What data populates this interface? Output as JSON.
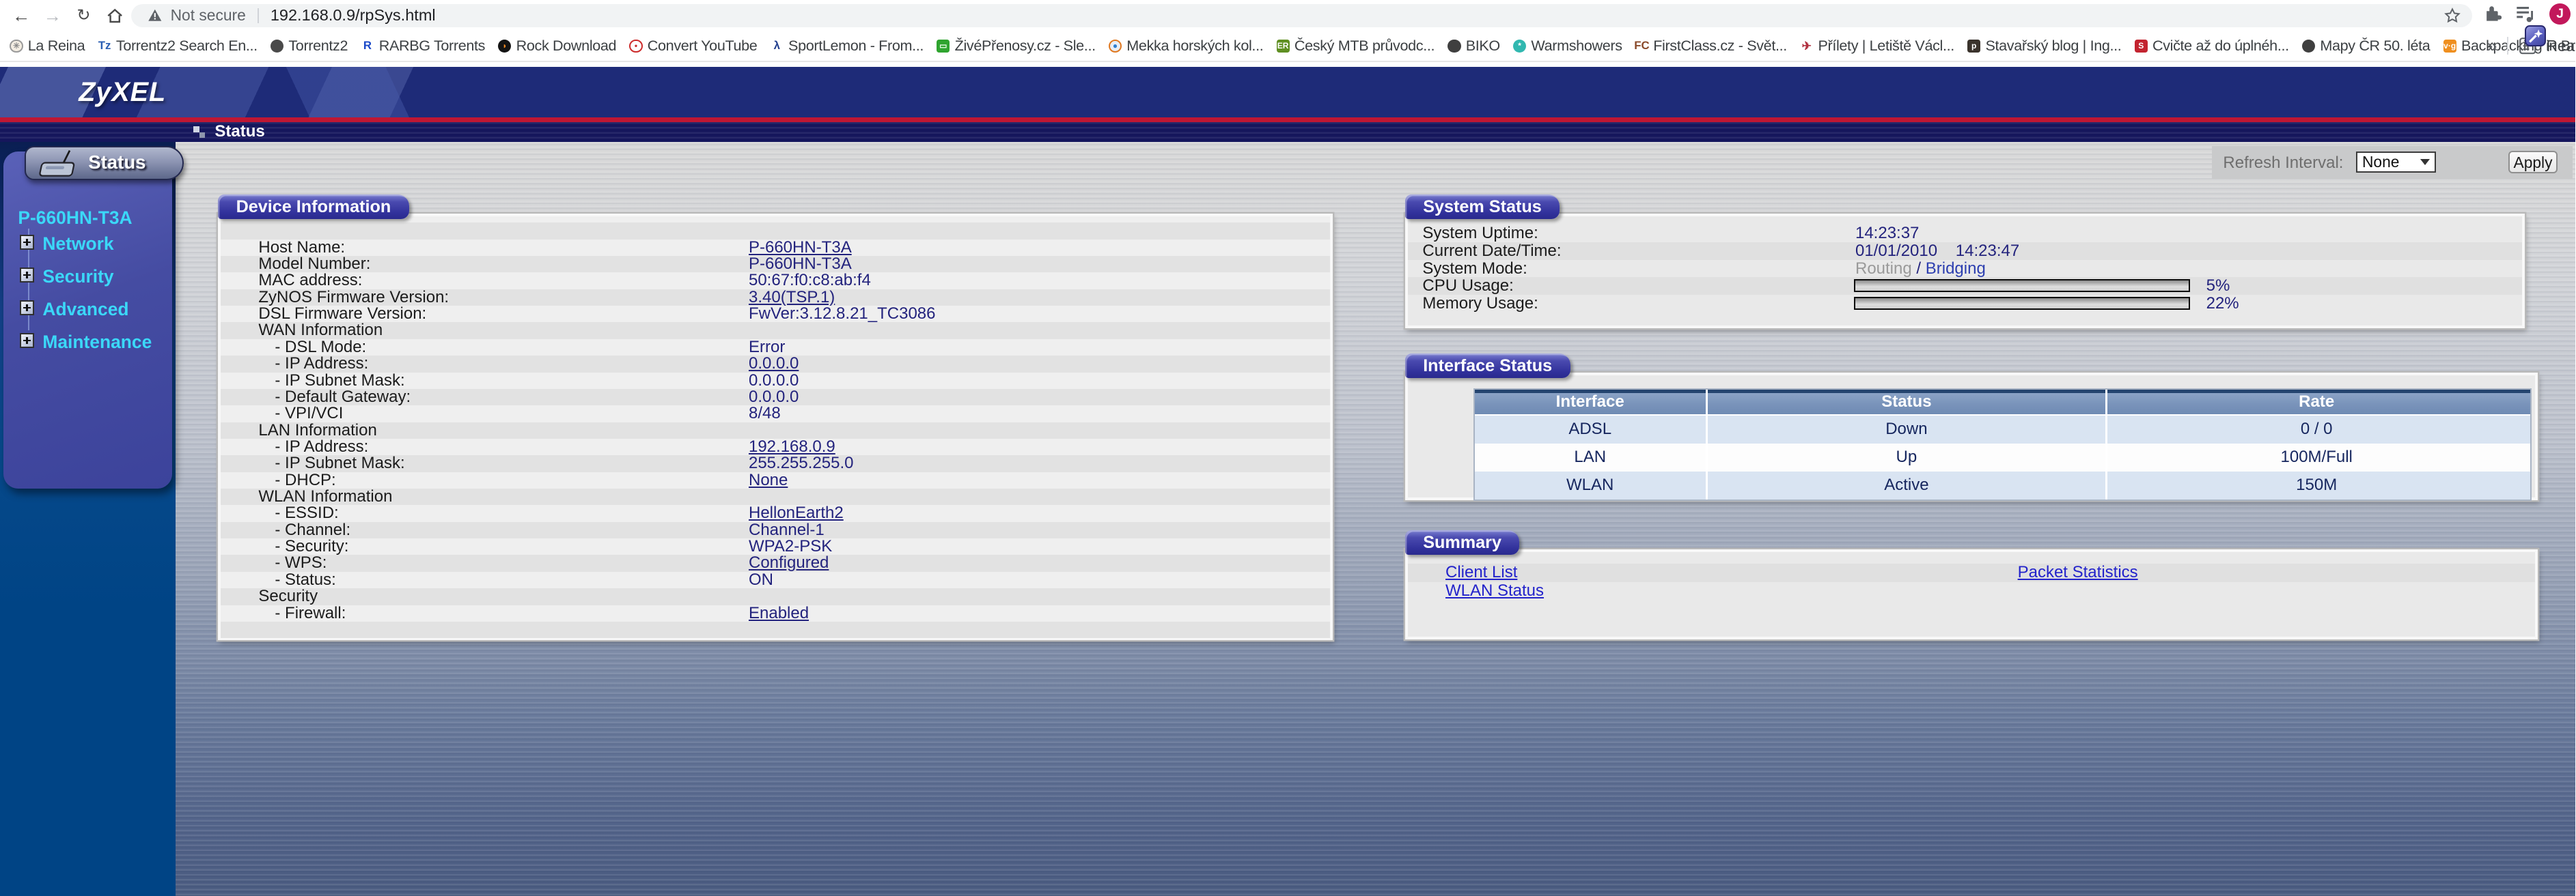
{
  "palette": {
    "red": "#bf1733",
    "cyan": "#3bd8f8",
    "link": "#2323cb",
    "navyval": "#23237d",
    "avatar": "#c2185b"
  },
  "browser": {
    "security_label": "Not secure",
    "url": "192.168.0.9/rpSys.html",
    "profile_initial": "J",
    "overflow_chevron": "»",
    "reading_list_label": "Reading list",
    "bookmarks": [
      {
        "label": "La Reina",
        "icon": {
          "shape": "circle",
          "bg": "#f3ede2",
          "fg": "#8a8a8a",
          "ch": "✳",
          "border": "#9a9a9a"
        }
      },
      {
        "label": "Torrentz2 Search En...",
        "icon": {
          "shape": "text",
          "bg": "",
          "fg": "#2b5fb3",
          "ch": "Tz",
          "border": ""
        }
      },
      {
        "label": "Torrentz2",
        "icon": {
          "shape": "circle",
          "bg": "#4a4a4a",
          "fg": "#e8e8e8",
          "ch": "",
          "border": ""
        }
      },
      {
        "label": "RARBG Torrents",
        "icon": {
          "shape": "text",
          "bg": "",
          "fg": "#1a49c8",
          "ch": "R",
          "border": ""
        }
      },
      {
        "label": "Rock Download",
        "icon": {
          "shape": "circle",
          "bg": "#141414",
          "fg": "#f08a22",
          "ch": "◗",
          "border": ""
        }
      },
      {
        "label": "Convert YouTube",
        "icon": {
          "shape": "circle",
          "bg": "#ffffff",
          "fg": "#cc2b2b",
          "ch": "•",
          "border": "#cc2b2b"
        }
      },
      {
        "label": "SportLemon - From...",
        "icon": {
          "shape": "text",
          "bg": "",
          "fg": "#23408f",
          "ch": "λ",
          "border": ""
        }
      },
      {
        "label": "ŽivéPřenosy.cz - Sle...",
        "icon": {
          "shape": "square",
          "bg": "#2fa42f",
          "fg": "#eaffea",
          "ch": "▭",
          "border": ""
        }
      },
      {
        "label": "Mekka horských kol...",
        "icon": {
          "shape": "circle",
          "bg": "#e8eef6",
          "fg": "#2f7fd0",
          "ch": "●",
          "border": "#e07820"
        }
      },
      {
        "label": "Český MTB průvodc...",
        "icon": {
          "shape": "square",
          "bg": "#5f8f22",
          "fg": "#ffffff",
          "ch": "ER",
          "border": ""
        }
      },
      {
        "label": "BIKO",
        "icon": {
          "shape": "circle",
          "bg": "#3f3f3f",
          "fg": "#ffffff",
          "ch": "",
          "border": ""
        }
      },
      {
        "label": "Warmshowers",
        "icon": {
          "shape": "circle",
          "bg": "#31b8b0",
          "fg": "#ffffff",
          "ch": "*",
          "border": ""
        }
      },
      {
        "label": "FirstClass.cz - Svět...",
        "icon": {
          "shape": "text",
          "bg": "",
          "fg": "#8a4a2a",
          "ch": "FC",
          "border": ""
        }
      },
      {
        "label": "Přílety | Letiště Václ...",
        "icon": {
          "shape": "text",
          "bg": "",
          "fg": "#b0303f",
          "ch": "✈",
          "border": ""
        }
      },
      {
        "label": "Stavařský blog | Ing...",
        "icon": {
          "shape": "square",
          "bg": "#3a332c",
          "fg": "#ffffff",
          "ch": "p",
          "border": ""
        }
      },
      {
        "label": "Cvičte až do úplnéh...",
        "icon": {
          "shape": "square",
          "bg": "#c32430",
          "fg": "#ffffff",
          "ch": "S",
          "border": ""
        }
      },
      {
        "label": "Mapy ČR 50. léta",
        "icon": {
          "shape": "circle",
          "bg": "#3f3f3f",
          "fg": "#ffffff",
          "ch": "",
          "border": ""
        }
      },
      {
        "label": "Backpacking in Brit...",
        "icon": {
          "shape": "square",
          "bg": "#ef8f1f",
          "fg": "#ffffff",
          "ch": "v·g",
          "border": ""
        }
      }
    ]
  },
  "header": {
    "logo": "ZyXEL",
    "breadcrumb": "Status"
  },
  "refresh": {
    "label": "Refresh Interval:",
    "value": "None",
    "apply": "Apply"
  },
  "sidebar": {
    "tab_label": "Status",
    "model": "P-660HN-T3A",
    "items": [
      "Network",
      "Security",
      "Advanced",
      "Maintenance"
    ]
  },
  "device_info": {
    "title": "Device Information",
    "rows": [
      {
        "label": "Host Name:",
        "value": "P-660HN-T3A",
        "link": true,
        "sub": false
      },
      {
        "label": "Model Number:",
        "value": "P-660HN-T3A",
        "link": false,
        "sub": false
      },
      {
        "label": "MAC address:",
        "value": "50:67:f0:c8:ab:f4",
        "link": false,
        "sub": false
      },
      {
        "label": "ZyNOS Firmware Version:",
        "value": "3.40(TSP.1)",
        "link": true,
        "sub": false
      },
      {
        "label": "DSL Firmware Version:",
        "value": "FwVer:3.12.8.21_TC3086",
        "link": false,
        "sub": false
      },
      {
        "label": "WAN Information",
        "value": "",
        "link": false,
        "sub": false
      },
      {
        "label": "- DSL Mode:",
        "value": "Error",
        "link": false,
        "sub": true
      },
      {
        "label": "- IP Address:",
        "value": "0.0.0.0",
        "link": true,
        "sub": true
      },
      {
        "label": "- IP Subnet Mask:",
        "value": "0.0.0.0",
        "link": false,
        "sub": true
      },
      {
        "label": "- Default Gateway:",
        "value": "0.0.0.0",
        "link": false,
        "sub": true
      },
      {
        "label": "- VPI/VCI",
        "value": "8/48",
        "link": false,
        "sub": true
      },
      {
        "label": "LAN Information",
        "value": "",
        "link": false,
        "sub": false
      },
      {
        "label": "- IP Address:",
        "value": "192.168.0.9",
        "link": true,
        "sub": true
      },
      {
        "label": "- IP Subnet Mask:",
        "value": "255.255.255.0",
        "link": false,
        "sub": true
      },
      {
        "label": "- DHCP:",
        "value": "None",
        "link": true,
        "sub": true
      },
      {
        "label": "WLAN Information",
        "value": "",
        "link": false,
        "sub": false
      },
      {
        "label": "- ESSID:",
        "value": "HellonEarth2",
        "link": true,
        "sub": true
      },
      {
        "label": "- Channel:",
        "value": "Channel-1",
        "link": false,
        "sub": true
      },
      {
        "label": "- Security:",
        "value": "WPA2-PSK",
        "link": false,
        "sub": true
      },
      {
        "label": "- WPS:",
        "value": "Configured",
        "link": true,
        "sub": true
      },
      {
        "label": "- Status:",
        "value": "ON",
        "link": false,
        "sub": true
      },
      {
        "label": "Security",
        "value": "",
        "link": false,
        "sub": false
      },
      {
        "label": "- Firewall:",
        "value": "Enabled",
        "link": true,
        "sub": true
      }
    ]
  },
  "system_status": {
    "title": "System Status",
    "uptime_label": "System Uptime:",
    "uptime": "14:23:37",
    "datetime_label": "Current Date/Time:",
    "date": "01/01/2010",
    "time": "14:23:47",
    "mode_label": "System Mode:",
    "mode_inactive": "Routing",
    "mode_sep": " / ",
    "mode_active": "Bridging",
    "cpu_label": "CPU Usage:",
    "cpu_pct": 5,
    "cpu_text": "5%",
    "mem_label": "Memory Usage:",
    "mem_pct": 22,
    "mem_text": "22%"
  },
  "interface_status": {
    "title": "Interface Status",
    "columns": [
      "Interface",
      "Status",
      "Rate"
    ],
    "rows": [
      [
        "ADSL",
        "Down",
        "0 / 0"
      ],
      [
        "LAN",
        "Up",
        "100M/Full"
      ],
      [
        "WLAN",
        "Active",
        "150M"
      ]
    ]
  },
  "summary": {
    "title": "Summary",
    "rows": [
      [
        "Client List",
        "Packet Statistics"
      ],
      [
        "WLAN Status",
        ""
      ]
    ]
  }
}
